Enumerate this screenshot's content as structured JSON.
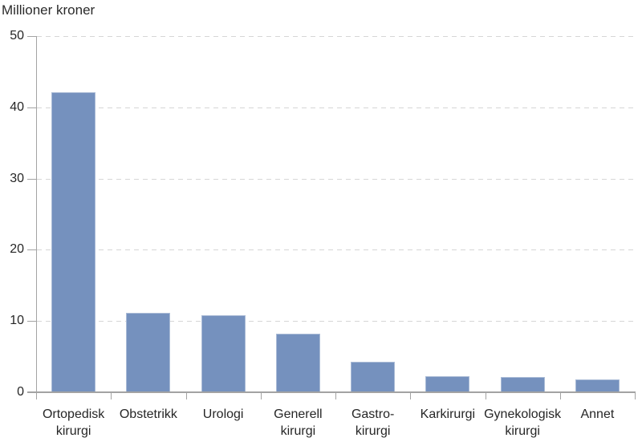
{
  "chart_data": {
    "type": "bar",
    "title": "Millioner kroner",
    "ylabel": "Millioner kroner",
    "xlabel": "",
    "categories": [
      "Ortopedisk\nkirurgi",
      "Obstetrikk",
      "Urologi",
      "Generell\nkirurgi",
      "Gastro-\nkirurgi",
      "Karkirurgi",
      "Gynekologisk\nkirurgi",
      "Annet"
    ],
    "values": [
      42.1,
      11.2,
      10.8,
      8.2,
      4.3,
      2.2,
      2.1,
      1.8
    ],
    "ylim": [
      0,
      50
    ],
    "yticks": [
      0,
      10,
      20,
      30,
      40,
      50
    ],
    "legend": "none",
    "grid": "horizontal-dashed",
    "colors": {
      "bar_fill": "#7591be",
      "bar_edge": "#aabbd6",
      "axis": "#a3a3a3",
      "gridline": "#d6d6d6",
      "text": "#262626"
    }
  }
}
